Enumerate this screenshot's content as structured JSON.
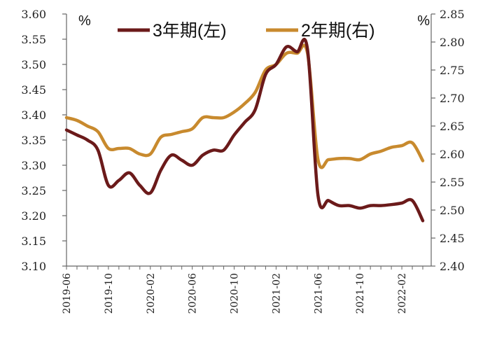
{
  "chart_data": {
    "type": "line",
    "x": [
      "2019-06",
      "2019-07",
      "2019-08",
      "2019-09",
      "2019-10",
      "2019-11",
      "2019-12",
      "2020-01",
      "2020-02",
      "2020-03",
      "2020-04",
      "2020-05",
      "2020-06",
      "2020-07",
      "2020-08",
      "2020-09",
      "2020-10",
      "2020-11",
      "2020-12",
      "2021-01",
      "2021-02",
      "2021-03",
      "2021-04",
      "2021-05",
      "2021-06",
      "2021-07",
      "2021-08",
      "2021-09",
      "2021-10",
      "2021-11",
      "2021-12",
      "2022-01",
      "2022-02",
      "2022-03",
      "2022-04"
    ],
    "xticks": [
      "2019-06",
      "2019-10",
      "2020-02",
      "2020-06",
      "2020-10",
      "2021-02",
      "2021-06",
      "2021-10",
      "2022-02"
    ],
    "left_axis": {
      "unit": "%",
      "ylim": [
        3.1,
        3.6
      ],
      "ticks": [
        "3.10",
        "3.15",
        "3.20",
        "3.25",
        "3.30",
        "3.35",
        "3.40",
        "3.45",
        "3.50",
        "3.55",
        "3.60"
      ]
    },
    "right_axis": {
      "unit": "%",
      "ylim": [
        2.4,
        2.85
      ],
      "ticks": [
        "2.40",
        "2.45",
        "2.50",
        "2.55",
        "2.60",
        "2.65",
        "2.70",
        "2.75",
        "2.80",
        "2.85"
      ]
    },
    "series": [
      {
        "name": "3年期(左)",
        "axis": "left",
        "color": "#6b1a1a",
        "values": [
          3.37,
          3.36,
          3.35,
          3.33,
          3.26,
          3.27,
          3.285,
          3.26,
          3.245,
          3.29,
          3.32,
          3.31,
          3.3,
          3.32,
          3.33,
          3.33,
          3.36,
          3.385,
          3.41,
          3.48,
          3.5,
          3.535,
          3.525,
          3.53,
          3.24,
          3.23,
          3.22,
          3.22,
          3.215,
          3.22,
          3.22,
          3.222,
          3.225,
          3.23,
          3.19
        ]
      },
      {
        "name": "2年期(右)",
        "axis": "right",
        "color": "#c88a2e",
        "values": [
          2.665,
          2.66,
          2.65,
          2.64,
          2.61,
          2.61,
          2.61,
          2.6,
          2.6,
          2.63,
          2.635,
          2.64,
          2.645,
          2.665,
          2.665,
          2.665,
          2.675,
          2.69,
          2.71,
          2.75,
          2.76,
          2.78,
          2.78,
          2.78,
          2.59,
          2.59,
          2.592,
          2.592,
          2.59,
          2.6,
          2.605,
          2.612,
          2.615,
          2.62,
          2.588
        ]
      }
    ],
    "grid": false,
    "legend": "top-center"
  }
}
